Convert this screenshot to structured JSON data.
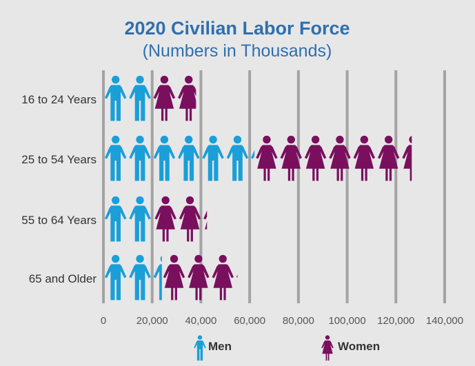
{
  "chart_data": {
    "type": "bar",
    "title": "2020 Civilian Labor Force",
    "subtitle": "(Numbers in Thousands)",
    "categories": [
      "16 to 24 Years",
      "25 to 54 Years",
      "55 to 64 Years",
      "65 and Older"
    ],
    "series": [
      {
        "name": "Men",
        "values": [
          20000,
          62000,
          20500,
          24000
        ],
        "color": "#1a9fd8",
        "icon": "man-icon"
      },
      {
        "name": "Women",
        "values": [
          18000,
          64500,
          22000,
          31000
        ],
        "color": "#7a0f5e",
        "icon": "woman-icon"
      }
    ],
    "stacked": true,
    "unit_per_icon": 10000,
    "xlim": [
      0,
      140000
    ],
    "xticks": [
      0,
      20000,
      40000,
      60000,
      80000,
      100000,
      120000,
      140000
    ],
    "xtick_labels": [
      "0",
      "20,000",
      "40,000",
      "60,000",
      "80,000",
      "100,000",
      "120,000",
      "140,000"
    ],
    "grid": true,
    "legend_position": "bottom"
  }
}
